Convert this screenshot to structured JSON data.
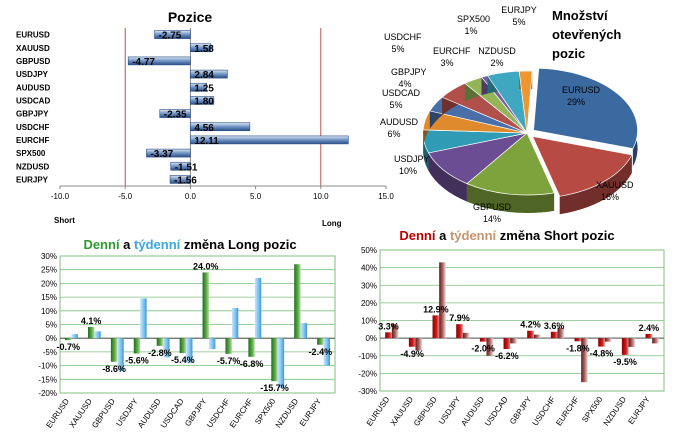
{
  "colors": {
    "green": "#2e9a2e",
    "blue": "#3aa6e0",
    "red": "#c00000",
    "brown": "#c8946c"
  },
  "chart_data": [
    {
      "type": "bar",
      "orientation": "horizontal",
      "title": "Pozice",
      "categories": [
        "EURUSD",
        "XAUUSD",
        "GBPUSD",
        "USDJPY",
        "AUDUSD",
        "USDCAD",
        "GBPJPY",
        "USDCHF",
        "EURCHF",
        "SPX500",
        "NZDUSD",
        "EURJPY"
      ],
      "values": [
        -2.75,
        1.58,
        -4.77,
        2.84,
        1.25,
        1.8,
        -2.35,
        4.56,
        12.11,
        -3.37,
        -1.51,
        -1.56
      ],
      "xlim": [
        -10,
        15
      ],
      "xticks": [
        "-10.0",
        "-5.0",
        "0.0",
        "5.0",
        "10.0",
        "15.0"
      ],
      "left_label": "Short",
      "right_label": "Long"
    },
    {
      "type": "pie",
      "title_lines": [
        "Množství",
        "otevřených",
        "pozic"
      ],
      "slices": [
        {
          "label": "EURUSD",
          "value": 29,
          "color": "#3b6aa0"
        },
        {
          "label": "XAUUSD",
          "value": 16,
          "color": "#b84a44"
        },
        {
          "label": "GBPUSD",
          "value": 14,
          "color": "#7fa33c"
        },
        {
          "label": "USDJPY",
          "value": 10,
          "color": "#6a4d92"
        },
        {
          "label": "AUDUSD",
          "value": 6,
          "color": "#2f9bb4"
        },
        {
          "label": "USDCAD",
          "value": 5,
          "color": "#e08a2e"
        },
        {
          "label": "GBPJPY",
          "value": 4,
          "color": "#4a6fa8"
        },
        {
          "label": "USDCHF",
          "value": 5,
          "color": "#b14f4a"
        },
        {
          "label": "EURCHF",
          "value": 3,
          "color": "#93b557"
        },
        {
          "label": "SPX500",
          "value": 1,
          "color": "#7a5fa0"
        },
        {
          "label": "EURJPY",
          "value": 5,
          "color": "#3fa8c0"
        },
        {
          "label": "NZDUSD",
          "value": 2,
          "color": "#f0962e"
        }
      ],
      "percent_labels": [
        "29%",
        "16%",
        "14%",
        "10%",
        "6%",
        "5%",
        "4%",
        "5%",
        "3%",
        "1%",
        "5%",
        "2%"
      ]
    },
    {
      "type": "bar",
      "title_parts": [
        "Denní",
        " a ",
        "týdenní",
        " změna Long pozic"
      ],
      "categories": [
        "EURUSD",
        "XAUUSD",
        "GBPUSD",
        "USDJPY",
        "AUDUSD",
        "USDCAD",
        "GBPJPY",
        "USDCHF",
        "EURCHF",
        "SPX500",
        "NZDUSD",
        "EURJPY"
      ],
      "series": [
        {
          "name": "Denní",
          "values": [
            -0.7,
            4.1,
            -8.6,
            -5.6,
            -2.8,
            -5.4,
            24.0,
            -5.7,
            -6.8,
            -15.7,
            27.0,
            -2.4
          ]
        },
        {
          "name": "týdenní",
          "values": [
            1.5,
            2.5,
            -12.0,
            14.5,
            -7.0,
            -9.0,
            -4.0,
            11.0,
            22.0,
            -18.0,
            5.5,
            -10.0
          ]
        }
      ],
      "data_labels": [
        "-0.7%",
        "4.1%",
        "-8.6%",
        "-5.6%",
        "-2.8%",
        "-5.4%",
        "24.0%",
        "-5.7%",
        "-6.8%",
        "-15.7%",
        "",
        "-2.4%"
      ],
      "ylim": [
        -20,
        30
      ],
      "yticks": [
        "-20%",
        "-15%",
        "-10%",
        "-5%",
        "0%",
        "5%",
        "10%",
        "15%",
        "20%",
        "25%",
        "30%"
      ]
    },
    {
      "type": "bar",
      "title_parts": [
        "Denní",
        " a ",
        "týdenní",
        " změna Short pozic"
      ],
      "categories": [
        "EURUSD",
        "XAUUSD",
        "GBPUSD",
        "USDJPY",
        "AUDUSD",
        "USDCAD",
        "GBPJPY",
        "USDCHF",
        "EURCHF",
        "SPX500",
        "NZDUSD",
        "EURJPY"
      ],
      "series": [
        {
          "name": "Denní",
          "values": [
            3.3,
            -4.9,
            12.9,
            7.9,
            -2.0,
            -6.2,
            4.2,
            3.6,
            -1.8,
            -4.8,
            -9.5,
            2.4
          ]
        },
        {
          "name": "týdenní",
          "values": [
            8.0,
            -7.0,
            43.0,
            3.0,
            -10.0,
            -3.0,
            2.0,
            6.0,
            -25.0,
            -2.0,
            -5.0,
            -3.0
          ]
        }
      ],
      "data_labels": [
        "3.3%",
        "-4.9%",
        "12.9%",
        "7.9%",
        "-2.0%",
        "-6.2%",
        "4.2%",
        "3.6%",
        "-1.8%",
        "-4.8%",
        "-9.5%",
        "2.4%"
      ],
      "ylim": [
        -30,
        50
      ],
      "yticks": [
        "-30%",
        "-20%",
        "-10%",
        "0%",
        "10%",
        "20%",
        "30%",
        "40%",
        "50%"
      ]
    }
  ]
}
